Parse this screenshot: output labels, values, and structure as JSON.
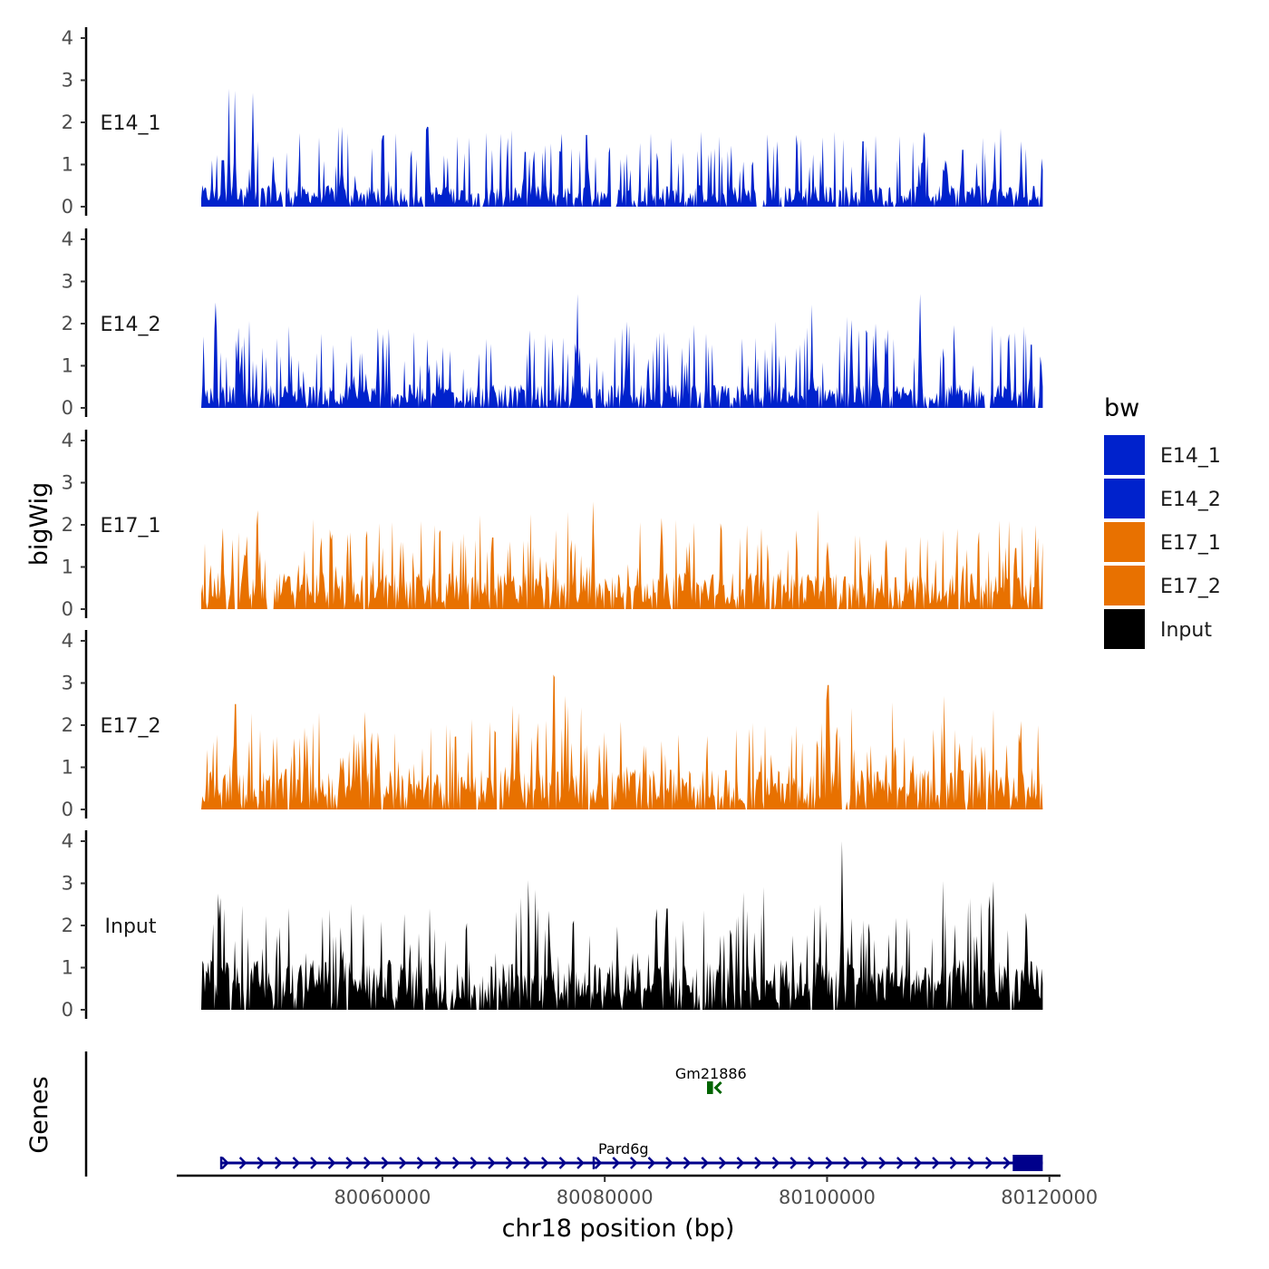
{
  "chart_data": {
    "type": "area",
    "chromosome_label": "chr18 position (bp)",
    "ylabel": "bigWig",
    "genes_label": "Genes",
    "xlim": [
      80041500,
      80121000
    ],
    "ylim": [
      0,
      4
    ],
    "x_ticks": [
      80060000,
      80080000,
      80100000,
      80120000
    ],
    "x_tick_labels": [
      "80060000",
      "80080000",
      "80100000",
      "80120000"
    ],
    "y_ticks": [
      0,
      1,
      2,
      3,
      4
    ],
    "y_tick_labels": [
      "0",
      "1",
      "2",
      "3",
      "4"
    ],
    "data_range": [
      80043700,
      80119400
    ],
    "legend": {
      "title": "bw",
      "entries": [
        {
          "label": "E14_1",
          "color": "#0022cc"
        },
        {
          "label": "E14_2",
          "color": "#0022cc"
        },
        {
          "label": "E17_1",
          "color": "#e87100"
        },
        {
          "label": "E17_2",
          "color": "#e87100"
        },
        {
          "label": "Input",
          "color": "#000000"
        }
      ]
    },
    "tracks": [
      {
        "name": "E14_1",
        "color": "#0022cc",
        "baseline": 0.32,
        "noise": 0.55,
        "max": 2.8,
        "peaks": [
          [
            80046200,
            2.8
          ],
          [
            80046700,
            2.75
          ],
          [
            80048300,
            2.7
          ],
          [
            80045600,
            1.1
          ],
          [
            80050200,
            1.2
          ],
          [
            80056300,
            1.9
          ],
          [
            80064000,
            1.9
          ],
          [
            80072800,
            1.3
          ],
          [
            80078400,
            1.7
          ],
          [
            80091400,
            1.45
          ],
          [
            80095500,
            1.55
          ],
          [
            80103200,
            1.55
          ],
          [
            80112200,
            1.35
          ],
          [
            80115100,
            1.55
          ],
          [
            80117500,
            1.55
          ]
        ],
        "gaps": [
          [
            80051000,
            80051300
          ],
          [
            80093600,
            80094300
          ],
          [
            80100700,
            80101000
          ]
        ]
      },
      {
        "name": "E14_2",
        "color": "#0022cc",
        "baseline": 0.35,
        "noise": 0.6,
        "max": 2.7,
        "peaks": [
          [
            80045000,
            2.5
          ],
          [
            80047000,
            1.9
          ],
          [
            80059600,
            1.9
          ],
          [
            80077600,
            2.7
          ],
          [
            80082000,
            2.05
          ],
          [
            80098600,
            2.45
          ],
          [
            80104400,
            2.0
          ],
          [
            80108400,
            2.7
          ],
          [
            80116400,
            1.75
          ],
          [
            80118300,
            1.5
          ]
        ],
        "gaps": [
          [
            80088600,
            80089000
          ],
          [
            80114200,
            80114500
          ]
        ]
      },
      {
        "name": "E17_1",
        "color": "#e87100",
        "baseline": 0.55,
        "noise": 0.55,
        "max": 2.55,
        "peaks": [
          [
            80048800,
            2.35
          ],
          [
            80054500,
            1.7
          ],
          [
            80061700,
            1.6
          ],
          [
            80069900,
            1.7
          ],
          [
            80079000,
            2.55
          ],
          [
            80087600,
            1.6
          ],
          [
            80100000,
            1.6
          ],
          [
            80105300,
            1.65
          ],
          [
            80116900,
            1.45
          ]
        ],
        "gaps": [
          [
            80046700,
            80047000
          ],
          [
            80049600,
            80050200
          ]
        ]
      },
      {
        "name": "E17_2",
        "color": "#e87100",
        "baseline": 0.6,
        "noise": 0.6,
        "max": 3.2,
        "peaks": [
          [
            80046700,
            2.5
          ],
          [
            80072300,
            2.3
          ],
          [
            80074000,
            2.05
          ],
          [
            80075400,
            3.2
          ],
          [
            80076500,
            2.7
          ],
          [
            80100000,
            2.95
          ],
          [
            80110500,
            2.7
          ],
          [
            80117500,
            2.1
          ]
        ],
        "gaps": [
          [
            80080300,
            80080600
          ],
          [
            80101300,
            80101700
          ]
        ]
      },
      {
        "name": "Input",
        "color": "#000000",
        "baseline": 0.75,
        "noise": 0.7,
        "max": 4.0,
        "peaks": [
          [
            80045400,
            2.65
          ],
          [
            80074900,
            2.35
          ],
          [
            80085600,
            2.4
          ],
          [
            80099400,
            2.5
          ],
          [
            80101300,
            4.0
          ],
          [
            80115000,
            3.05
          ],
          [
            80114600,
            2.7
          ]
        ],
        "gaps": [
          [
            80068400,
            80068700
          ],
          [
            80070200,
            80070500
          ],
          [
            80088500,
            80088800
          ]
        ]
      }
    ],
    "genes": [
      {
        "name": "Gm21886",
        "color": "#006400",
        "start": 80089200,
        "end": 80089900,
        "strand": "-"
      },
      {
        "name": "Pard6g",
        "color": "#00008b",
        "start": 80045500,
        "end": 80119400,
        "strand": "+",
        "exon_start": 80116700,
        "exon_end": 80119400
      }
    ]
  }
}
